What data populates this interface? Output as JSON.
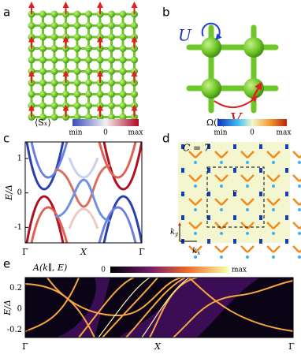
{
  "panels": [
    {
      "label": "a"
    },
    {
      "label": "b",
      "annotations": [
        "U",
        "V"
      ]
    },
    {
      "label": "c",
      "colorbar_title": "⟨Sₓ⟩",
      "colorbar_ticks": [
        "min",
        "0",
        "max"
      ],
      "ylabel": "E/Δ",
      "ylim": [
        -1.45,
        1.48
      ],
      "yticks": [
        1,
        0,
        -1
      ],
      "xlabels": [
        "Γ",
        "X",
        "Γ"
      ]
    },
    {
      "label": "d",
      "colorbar_title": "Ω(k)",
      "colorbar_ticks": [
        "min",
        "0",
        "max"
      ],
      "annotation": "C = 7",
      "center_label": "Γ",
      "axis_y": {
        "base": "k",
        "sub": "y"
      },
      "axis_x": {
        "base": "k",
        "sub": "x"
      }
    },
    {
      "label": "e",
      "colorbar_title": "A(k∥, E)",
      "colorbar_ticks": [
        "0",
        "max"
      ],
      "ylabel": "E/Δ",
      "ylim": [
        -0.27,
        0.3
      ],
      "yticks": [
        0.2,
        0,
        -0.2
      ],
      "xlabels": [
        "Γ",
        "X",
        "Γ"
      ]
    }
  ]
}
